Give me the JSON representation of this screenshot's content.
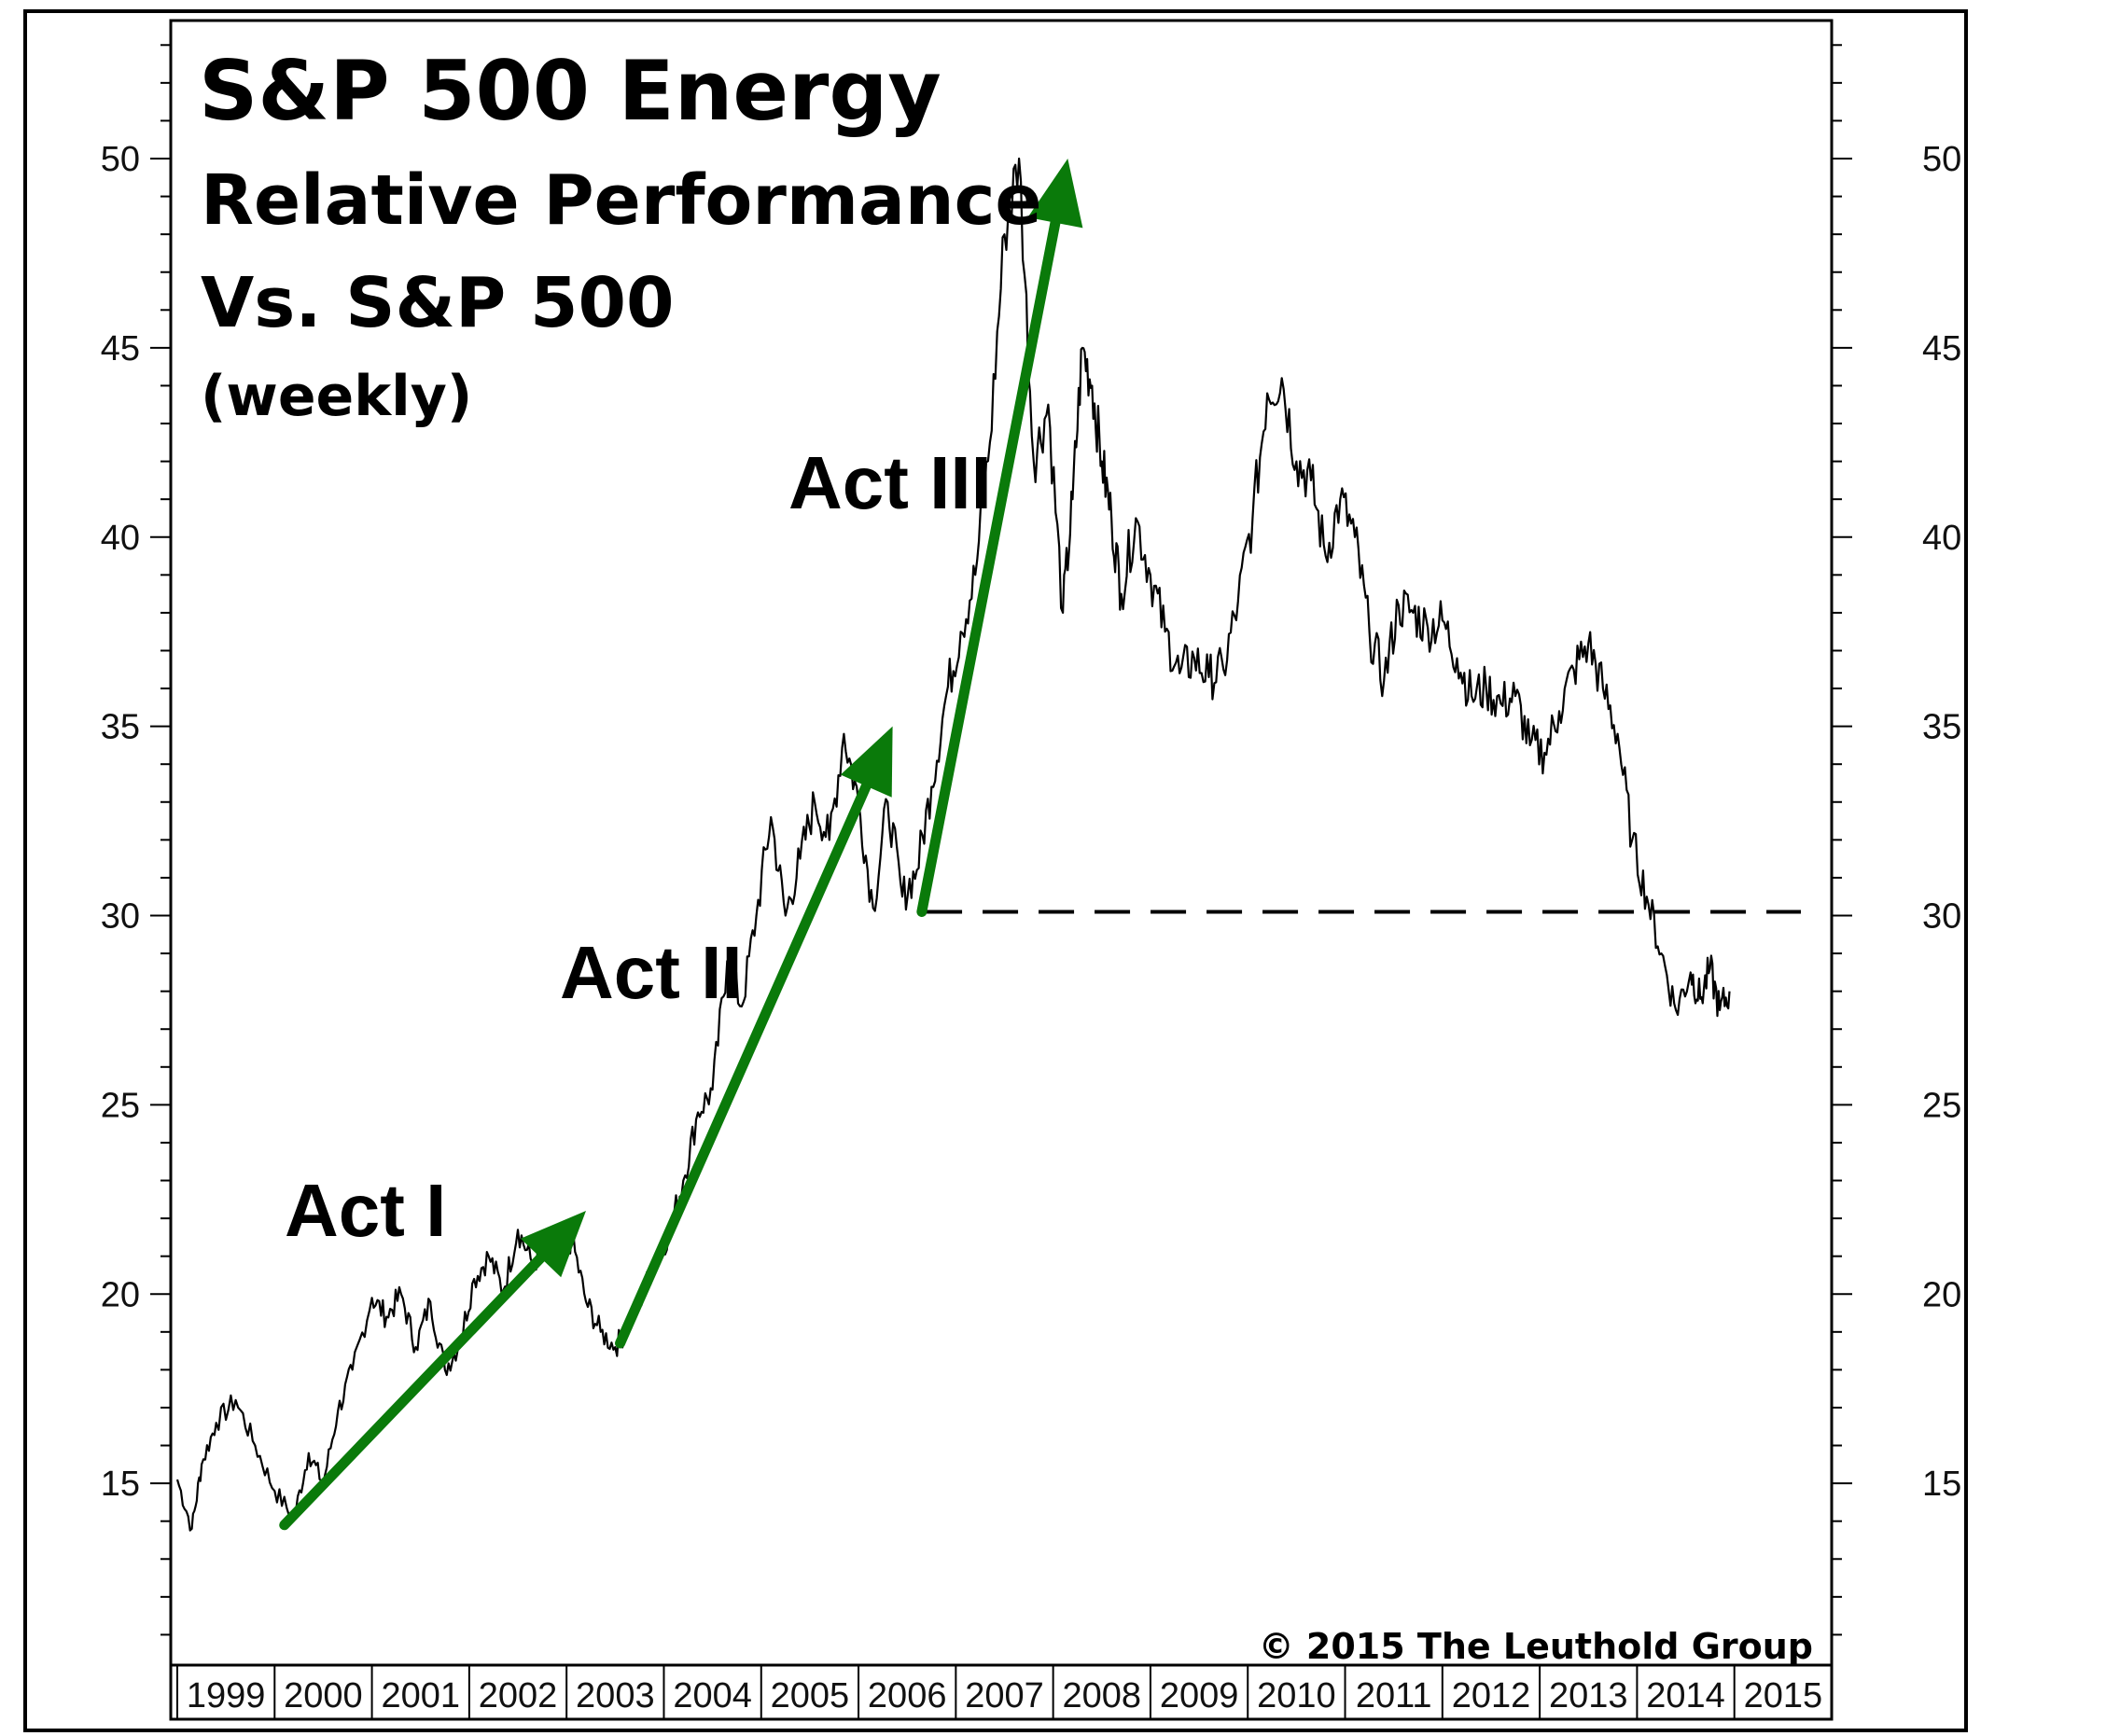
{
  "chart_data": {
    "type": "line",
    "title_lines": [
      "S&P 500 Energy",
      "Relative Performance",
      "Vs. S&P 500",
      "(weekly)"
    ],
    "xlabel": "",
    "ylabel": "",
    "ylim": [
      10,
      54
    ],
    "xlim": [
      1999.0,
      2016.0
    ],
    "yticks": [
      15,
      20,
      25,
      30,
      35,
      40,
      45,
      50
    ],
    "ytick_labels": [
      "15",
      "20",
      "25",
      "30",
      "35",
      "40",
      "45",
      "50"
    ],
    "x_categories": [
      "1999",
      "2000",
      "2001",
      "2002",
      "2003",
      "2004",
      "2005",
      "2006",
      "2007",
      "2008",
      "2009",
      "2010",
      "2011",
      "2012",
      "2013",
      "2014",
      "2015"
    ],
    "grid": false,
    "legend": "none",
    "series": [
      {
        "color": "#000000",
        "x": [
          1999.0,
          1999.15,
          1999.25,
          1999.4,
          1999.6,
          1999.8,
          2000.0,
          2000.2,
          2000.35,
          2000.5,
          2000.65,
          2000.8,
          2001.0,
          2001.15,
          2001.3,
          2001.45,
          2001.6,
          2001.75,
          2001.9,
          2002.05,
          2002.2,
          2002.35,
          2002.5,
          2002.65,
          2002.8,
          2002.95,
          2003.05,
          2003.2,
          2003.35,
          2003.5,
          2003.65,
          2003.75,
          2003.9,
          2004.05,
          2004.2,
          2004.35,
          2004.5,
          2004.65,
          2004.8,
          2004.95,
          2005.1,
          2005.25,
          2005.4,
          2005.55,
          2005.7,
          2005.85,
          2006.0,
          2006.15,
          2006.3,
          2006.45,
          2006.6,
          2006.75,
          2006.9,
          2007.05,
          2007.2,
          2007.35,
          2007.5,
          2007.65,
          2007.8,
          2007.95,
          2008.1,
          2008.2,
          2008.3,
          2008.4,
          2008.5,
          2008.6,
          2008.7,
          2008.85,
          2009.0,
          2009.15,
          2009.3,
          2009.45,
          2009.6,
          2009.75,
          2009.9,
          2010.05,
          2010.2,
          2010.35,
          2010.5,
          2010.65,
          2010.8,
          2010.95,
          2011.1,
          2011.25,
          2011.4,
          2011.55,
          2011.7,
          2011.85,
          2012.0,
          2012.15,
          2012.3,
          2012.45,
          2012.6,
          2012.75,
          2012.9,
          2013.05,
          2013.2,
          2013.35,
          2013.5,
          2013.65,
          2013.8,
          2013.95,
          2014.1,
          2014.25,
          2014.4,
          2014.55,
          2014.65,
          2014.75,
          2014.85,
          2014.95
        ],
        "values": [
          15.1,
          13.8,
          15.5,
          16.6,
          17.2,
          16.0,
          14.8,
          14.1,
          15.8,
          15.0,
          16.9,
          18.0,
          19.9,
          19.4,
          20.0,
          18.6,
          19.8,
          18.0,
          18.7,
          20.4,
          21.0,
          20.1,
          21.7,
          20.8,
          21.3,
          20.6,
          21.5,
          19.8,
          19.0,
          18.6,
          19.2,
          19.8,
          20.8,
          21.6,
          23.0,
          24.8,
          25.4,
          28.8,
          27.6,
          30.0,
          32.6,
          30.0,
          31.5,
          33.0,
          32.0,
          34.8,
          33.0,
          30.2,
          33.0,
          30.5,
          31.2,
          33.4,
          35.8,
          37.5,
          39.0,
          42.5,
          48.0,
          50.0,
          42.0,
          43.5,
          38.0,
          41.0,
          45.0,
          44.0,
          42.0,
          40.5,
          38.5,
          40.5,
          39.0,
          37.5,
          36.4,
          36.8,
          36.3,
          36.5,
          38.3,
          40.5,
          43.8,
          44.2,
          42.0,
          41.5,
          39.5,
          41.0,
          40.0,
          37.5,
          36.2,
          38.2,
          38.0,
          37.6,
          37.8,
          36.8,
          35.8,
          36.0,
          35.6,
          35.8,
          34.5,
          34.3,
          35.4,
          36.5,
          37.2,
          36.0,
          34.8,
          32.0,
          30.5,
          29.0,
          27.5,
          28.5,
          27.8,
          28.6,
          27.5,
          28.0
        ]
      }
    ],
    "reference_line": {
      "y": 30.1,
      "style": "dashed"
    },
    "annotations": [
      {
        "text": "Act I",
        "arrow_from": {
          "x": 2000.1,
          "y": 13.9
        },
        "arrow_to": {
          "x": 2003.2,
          "y": 22.2
        },
        "arrow_color": "#0a7a0a"
      },
      {
        "text": "Act II",
        "arrow_from": {
          "x": 2003.55,
          "y": 18.7
        },
        "arrow_to": {
          "x": 2006.35,
          "y": 35.0
        },
        "arrow_color": "#0a7a0a"
      },
      {
        "text": "Act III",
        "arrow_from": {
          "x": 2006.65,
          "y": 30.1
        },
        "arrow_to": {
          "x": 2008.15,
          "y": 50.0
        },
        "arrow_color": "#0a7a0a"
      }
    ],
    "copyright": "© 2015 The Leuthold Group"
  }
}
